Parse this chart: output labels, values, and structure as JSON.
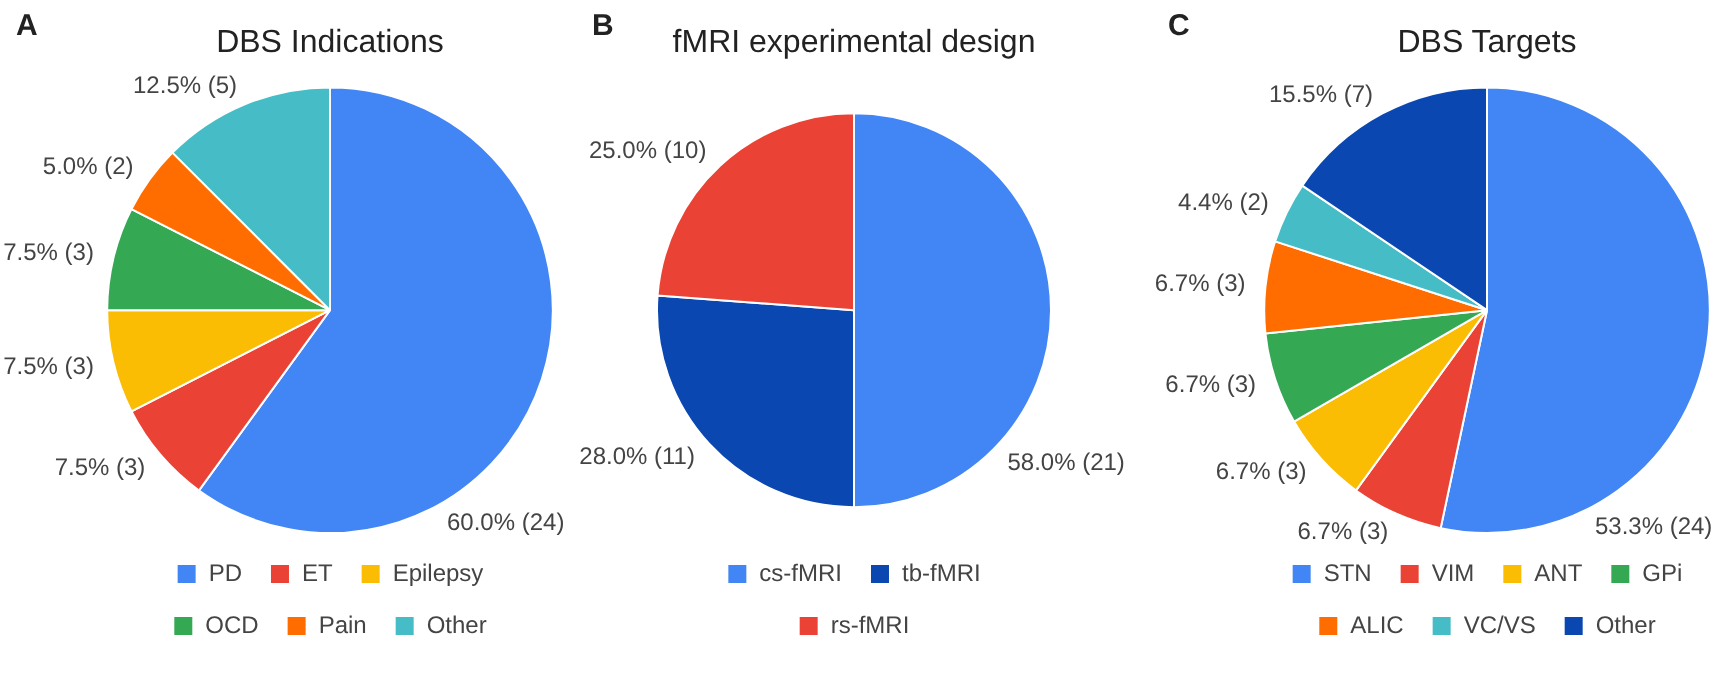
{
  "chart_data": [
    {
      "type": "pie",
      "title": "DBS Indications",
      "annotations": [
        "A"
      ],
      "categories": [
        "PD",
        "ET",
        "Epilepsy",
        "OCD",
        "Pain",
        "Other"
      ],
      "values": [
        24,
        3,
        3,
        3,
        2,
        5
      ],
      "colors": [
        "#4285f4",
        "#ea4335",
        "#fbbc04",
        "#34a853",
        "#ff6d01",
        "#46bdc6"
      ],
      "value_labels": [
        "60.0% (24)",
        "7.5% (3)",
        "7.5% (3)",
        "7.5% (3)",
        "5.0% (2)",
        "12.5% (5)"
      ],
      "legend": "bottom"
    },
    {
      "type": "pie",
      "title": "fMRI experimental design",
      "annotations": [
        "B"
      ],
      "categories": [
        "cs-fMRI",
        "tb-fMRI",
        "rs-fMRI"
      ],
      "values": [
        21,
        11,
        10
      ],
      "colors": [
        "#4285f4",
        "#0b47b0",
        "#ea4335"
      ],
      "value_labels": [
        "58.0% (21)",
        "28.0% (11)",
        "25.0% (10)"
      ],
      "legend": "bottom"
    },
    {
      "type": "pie",
      "title": "DBS Targets",
      "annotations": [
        "C"
      ],
      "categories": [
        "STN",
        "VIM",
        "ANT",
        "GPi",
        "ALIC",
        "VC/VS",
        "Other"
      ],
      "values": [
        24,
        3,
        3,
        3,
        3,
        2,
        7
      ],
      "colors": [
        "#4285f4",
        "#ea4335",
        "#fbbc04",
        "#34a853",
        "#ff6d01",
        "#46bdc6",
        "#0b47b0"
      ],
      "value_labels": [
        "53.3% (24)",
        "6.7% (3)",
        "6.7% (3)",
        "6.7% (3)",
        "6.7% (3)",
        "4.4% (2)",
        "15.5% (7)"
      ],
      "legend": "bottom"
    }
  ]
}
